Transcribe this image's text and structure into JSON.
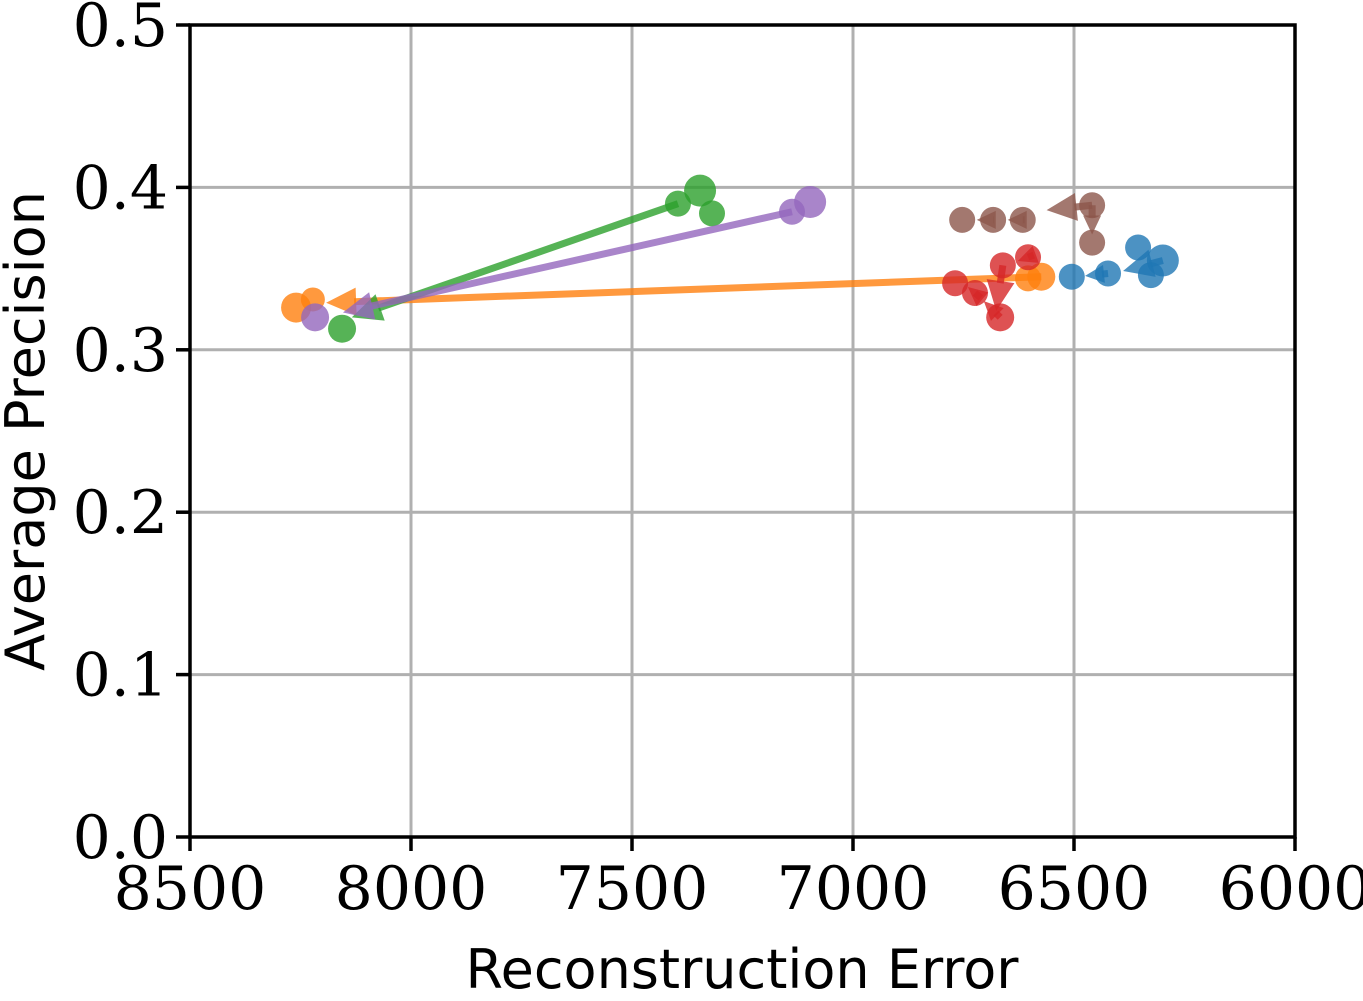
{
  "figure": {
    "background": "#ffffff",
    "axes_color": "#000000",
    "grid_color": "#b0b0b0"
  },
  "chart_data": {
    "type": "scatter",
    "subtype": "trajectory-with-arrows",
    "title": "",
    "xlabel": "Reconstruction Error",
    "ylabel": "Average Precision",
    "xlim": [
      8500,
      6000
    ],
    "ylim": [
      0.0,
      0.5
    ],
    "x_axis_reversed": true,
    "grid": true,
    "legend": "none",
    "xticks": {
      "values": [
        8500,
        8000,
        7500,
        7000,
        6500,
        6000
      ],
      "labels": [
        "8500",
        "8000",
        "7500",
        "7000",
        "6500",
        "6000"
      ]
    },
    "yticks": {
      "values": [
        0.0,
        0.1,
        0.2,
        0.3,
        0.4,
        0.5
      ],
      "labels": [
        "0.0",
        "0.1",
        "0.2",
        "0.3",
        "0.4",
        "0.5"
      ]
    },
    "series": [
      {
        "name": "blue",
        "color": "#1f77b4",
        "points": [
          {
            "x": 6299,
            "y": 0.355,
            "size": 16
          },
          {
            "x": 6355,
            "y": 0.363,
            "size": 13
          },
          {
            "x": 6326,
            "y": 0.346,
            "size": 13
          },
          {
            "x": 6423,
            "y": 0.347,
            "size": 13
          },
          {
            "x": 6505,
            "y": 0.345,
            "size": 13
          }
        ],
        "arrows": [
          {
            "x1": 6299,
            "y1": 0.355,
            "x2": 6389,
            "y2": 0.3485,
            "head": "large"
          },
          {
            "x1": 6423,
            "y1": 0.347,
            "x2": 6475,
            "y2": 0.3455,
            "head": "small"
          }
        ]
      },
      {
        "name": "orange",
        "color": "#ff7f0e",
        "points": [
          {
            "x": 6604,
            "y": 0.344,
            "size": 13
          },
          {
            "x": 6574,
            "y": 0.345,
            "size": 14
          },
          {
            "x": 8222,
            "y": 0.331,
            "size": 12
          },
          {
            "x": 8260,
            "y": 0.326,
            "size": 15
          }
        ],
        "arrows": [
          {
            "x1": 6574,
            "y1": 0.345,
            "x2": 8192,
            "y2": 0.329,
            "head": "large"
          }
        ]
      },
      {
        "name": "green",
        "color": "#2ca02c",
        "points": [
          {
            "x": 7396,
            "y": 0.39,
            "size": 13
          },
          {
            "x": 7346,
            "y": 0.398,
            "size": 16
          },
          {
            "x": 7319,
            "y": 0.384,
            "size": 13
          },
          {
            "x": 8156,
            "y": 0.313,
            "size": 14
          }
        ],
        "arrows": [
          {
            "x1": 7396,
            "y1": 0.39,
            "x2": 8134,
            "y2": 0.32,
            "head": "large"
          }
        ]
      },
      {
        "name": "red",
        "color": "#d62728",
        "points": [
          {
            "x": 6769,
            "y": 0.341,
            "size": 13
          },
          {
            "x": 6724,
            "y": 0.335,
            "size": 13
          },
          {
            "x": 6661,
            "y": 0.352,
            "size": 13
          },
          {
            "x": 6604,
            "y": 0.357,
            "size": 13
          },
          {
            "x": 6667,
            "y": 0.32,
            "size": 14
          }
        ],
        "arrows": [
          {
            "x1": 6604,
            "y1": 0.357,
            "x2": 6627,
            "y2": 0.3547,
            "head": "small"
          },
          {
            "x1": 6661,
            "y1": 0.352,
            "x2": 6676,
            "y2": 0.324,
            "head": "large"
          },
          {
            "x1": 6667,
            "y1": 0.32,
            "x2": 6704,
            "y2": 0.33,
            "head": "small"
          },
          {
            "x1": 6724,
            "y1": 0.335,
            "x2": 6740,
            "y2": 0.3387,
            "head": "small"
          }
        ]
      },
      {
        "name": "purple",
        "color": "#9467bd",
        "points": [
          {
            "x": 7138,
            "y": 0.385,
            "size": 13
          },
          {
            "x": 7097,
            "y": 0.391,
            "size": 16
          },
          {
            "x": 8217,
            "y": 0.32,
            "size": 14
          }
        ],
        "arrows": [
          {
            "x1": 7138,
            "y1": 0.385,
            "x2": 8154,
            "y2": 0.323,
            "head": "large"
          }
        ]
      },
      {
        "name": "brown",
        "color": "#8c564b",
        "points": [
          {
            "x": 6459,
            "y": 0.389,
            "size": 13
          },
          {
            "x": 6459,
            "y": 0.366,
            "size": 13
          },
          {
            "x": 6616,
            "y": 0.38,
            "size": 13
          },
          {
            "x": 6683,
            "y": 0.38,
            "size": 13
          },
          {
            "x": 6753,
            "y": 0.38,
            "size": 13
          }
        ],
        "arrows": [
          {
            "x1": 6459,
            "y1": 0.389,
            "x2": 6562,
            "y2": 0.386,
            "head": "large"
          },
          {
            "x1": 6616,
            "y1": 0.38,
            "x2": 6650,
            "y2": 0.38,
            "head": "small"
          },
          {
            "x1": 6683,
            "y1": 0.38,
            "x2": 6720,
            "y2": 0.38,
            "head": "small"
          },
          {
            "x1": 6459,
            "y1": 0.389,
            "x2": 6459,
            "y2": 0.371,
            "head": "small"
          }
        ]
      }
    ]
  }
}
